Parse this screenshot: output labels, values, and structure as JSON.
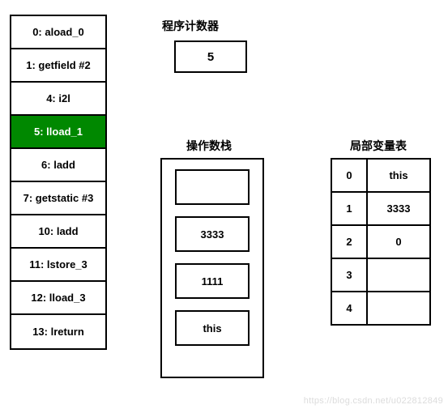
{
  "colors": {
    "background": "#ffffff",
    "border": "#000000",
    "text": "#000000",
    "highlight_bg": "#008800",
    "highlight_text": "#ffffff",
    "watermark": "#dcdcdc"
  },
  "instructions": {
    "items": [
      {
        "label": "0: aload_0"
      },
      {
        "label": "1: getfield #2"
      },
      {
        "label": "4: i2l"
      },
      {
        "label": "5: lload_1"
      },
      {
        "label": "6: ladd"
      },
      {
        "label": "7: getstatic #3"
      },
      {
        "label": "10: ladd"
      },
      {
        "label": "11: lstore_3"
      },
      {
        "label": "12: lload_3"
      },
      {
        "label": "13: lreturn"
      }
    ],
    "active_index": 3
  },
  "program_counter": {
    "label": "程序计数器",
    "value": "5"
  },
  "operand_stack": {
    "label": "操作数栈",
    "slots": [
      "",
      "3333",
      "1111",
      "this"
    ]
  },
  "local_vars": {
    "label": "局部变量表",
    "rows": [
      {
        "index": "0",
        "value": "this"
      },
      {
        "index": "1",
        "value": "3333"
      },
      {
        "index": "2",
        "value": "0"
      },
      {
        "index": "3",
        "value": ""
      },
      {
        "index": "4",
        "value": ""
      }
    ]
  },
  "watermark": "https://blog.csdn.net/u022812849"
}
